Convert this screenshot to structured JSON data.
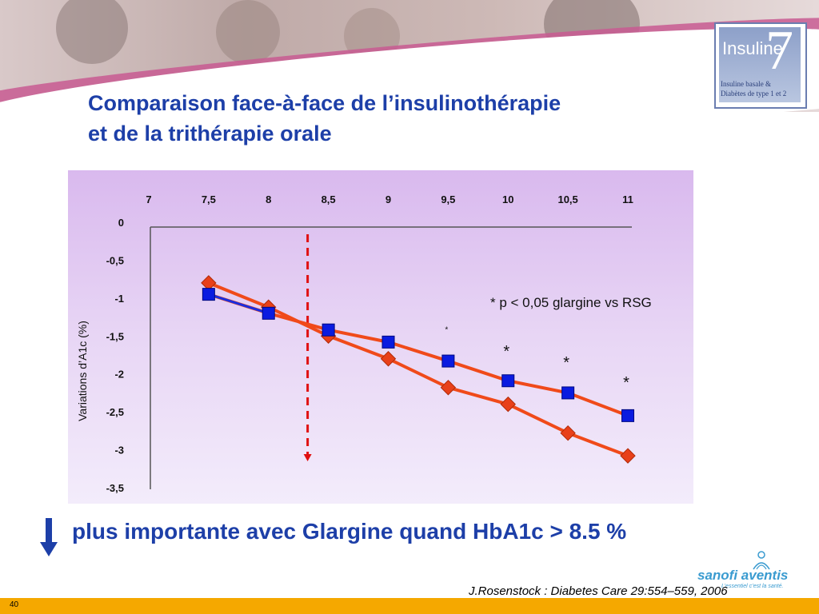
{
  "slide": {
    "title_line1": "Comparaison face-à-face de l’insulinothérapie",
    "title_line2": "et de la trithérapie orale",
    "bottom_text": "plus importante avec Glargine quand HbA1c > 8.5 %",
    "citation": "J.Rosenstock : Diabetes Care 29:554–559, 2006",
    "page_number": "40"
  },
  "logo": {
    "word": "Insuline",
    "number": "7",
    "sub_line1": "Insuline basale &",
    "sub_line2": "Diabètes de type 1 et 2"
  },
  "company": {
    "name": "sanofi aventis",
    "tagline": "L’essentiel c’est la santé."
  },
  "colors": {
    "title": "#1d3fa8",
    "line": "#f04a1a",
    "diamond": "#e8401a",
    "square": "#0a1be0",
    "dashed": "#e01010",
    "footer": "#f5a800"
  },
  "chart_data": {
    "type": "line",
    "ylabel": "Variations d’A1c (%)",
    "xlabel": "",
    "x_ticks": [
      "7",
      "7,5",
      "8",
      "8,5",
      "9",
      "9,5",
      "10",
      "10,5",
      "11"
    ],
    "y_ticks": [
      "0",
      "-0,5",
      "-1",
      "-1,5",
      "-2",
      "-2,5",
      "-3",
      "-3,5"
    ],
    "xlim": [
      7,
      11
    ],
    "ylim": [
      -3.5,
      0
    ],
    "x_axis_position": "top",
    "threshold_x": 8.5,
    "annotation": "* p < 0,05 glargine vs RSG",
    "significance_marks": [
      {
        "x": 9.5,
        "y": -1.45,
        "label": "*",
        "small": true
      },
      {
        "x": 10.0,
        "y": -1.77,
        "label": "*"
      },
      {
        "x": 10.5,
        "y": -1.92,
        "label": "*"
      },
      {
        "x": 11.0,
        "y": -2.18,
        "label": "*"
      }
    ],
    "series": [
      {
        "marker": "diamond",
        "x": [
          7.5,
          8.0,
          8.5,
          9.0,
          9.5,
          10.0,
          10.5,
          11.0
        ],
        "y": [
          -0.8,
          -1.12,
          -1.5,
          -1.8,
          -2.18,
          -2.4,
          -2.78,
          -3.08
        ]
      },
      {
        "marker": "square",
        "x": [
          7.5,
          8.0,
          8.5,
          9.0,
          9.5,
          10.0,
          10.5,
          11.0
        ],
        "y": [
          -0.95,
          -1.2,
          -1.42,
          -1.58,
          -1.83,
          -2.09,
          -2.25,
          -2.55
        ]
      }
    ]
  }
}
